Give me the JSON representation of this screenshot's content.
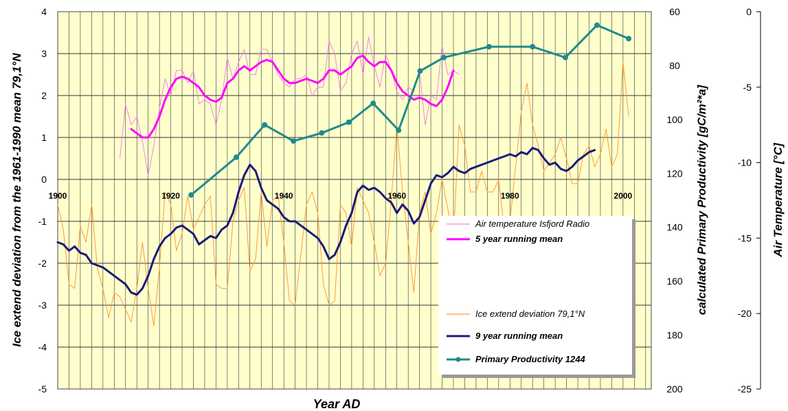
{
  "chart_data": {
    "type": "line",
    "xlabel": "Year AD",
    "ylabel_left": "Ice extend deviation from the 1961-1990 mean 79,1°N",
    "ylabel_mid": "calculated Primary Productivity [gC/m²*a]",
    "ylabel_right": "Air Temperature [°C]",
    "xlim": [
      1900,
      2005
    ],
    "x_ticks": [
      "1900",
      "1920",
      "1940",
      "1960",
      "1980",
      "2000"
    ],
    "ylim_left": [
      -5,
      4
    ],
    "left_ticks": [
      "4",
      "3",
      "2",
      "1",
      "0",
      "-1",
      "-2",
      "-3",
      "-4",
      "-5"
    ],
    "ylim_mid": [
      200,
      60
    ],
    "mid_ticks": [
      "60",
      "80",
      "100",
      "120",
      "140",
      "160",
      "180",
      "200"
    ],
    "ylim_right": [
      -25,
      0
    ],
    "right_ticks": [
      "0",
      "-5",
      "-10",
      "-15",
      "-20",
      "-25"
    ],
    "grid": true,
    "legend_placement": "bottom-right",
    "legend": [
      {
        "label": "Air temperature Isfjord Radio",
        "bold": false
      },
      {
        "label": "5 year running mean",
        "bold": true
      },
      {
        "label": "Ice extend deviation 79,1°N",
        "bold": false
      },
      {
        "label": "9 year running mean",
        "bold": true
      },
      {
        "label": "Primary Productivity 1244",
        "bold": true
      }
    ],
    "series": [
      {
        "name": "Air temperature Isfjord Radio",
        "axis": "left",
        "color": "#ee82ee",
        "x": [
          1911,
          1912,
          1913,
          1914,
          1915,
          1916,
          1917,
          1918,
          1919,
          1920,
          1921,
          1922,
          1923,
          1924,
          1925,
          1926,
          1927,
          1928,
          1929,
          1930,
          1931,
          1932,
          1933,
          1934,
          1935,
          1936,
          1937,
          1938,
          1939,
          1940,
          1941,
          1942,
          1943,
          1944,
          1945,
          1946,
          1947,
          1948,
          1949,
          1950,
          1951,
          1952,
          1953,
          1954,
          1955,
          1956,
          1957,
          1958,
          1959,
          1960,
          1961,
          1962,
          1963,
          1964,
          1965,
          1966,
          1967,
          1968,
          1969,
          1970,
          1971
        ],
        "y": [
          0.5,
          1.8,
          1.3,
          1.5,
          0.9,
          0.1,
          0.8,
          1.7,
          2.4,
          2.0,
          2.6,
          2.6,
          2.3,
          2.6,
          1.8,
          1.9,
          1.8,
          1.3,
          1.9,
          2.9,
          2.4,
          2.8,
          3.1,
          2.5,
          2.5,
          3.1,
          3.1,
          2.8,
          2.5,
          2.3,
          2.2,
          2.4,
          2.4,
          2.5,
          2.0,
          2.2,
          2.2,
          3.3,
          3.0,
          2.1,
          2.3,
          3.0,
          3.3,
          2.5,
          3.4,
          2.7,
          2.2,
          3.0,
          2.6,
          2.1,
          1.9,
          2.2,
          2.1,
          2.6,
          1.3,
          2.0,
          1.9,
          3.2,
          2.5,
          2.6,
          2.5
        ]
      },
      {
        "name": "5 year running mean",
        "axis": "left",
        "color": "#ff00ff",
        "x": [
          1913,
          1914,
          1915,
          1916,
          1917,
          1918,
          1919,
          1920,
          1921,
          1922,
          1923,
          1924,
          1925,
          1926,
          1927,
          1928,
          1929,
          1930,
          1931,
          1932,
          1933,
          1934,
          1935,
          1936,
          1937,
          1938,
          1939,
          1940,
          1941,
          1942,
          1943,
          1944,
          1945,
          1946,
          1947,
          1948,
          1949,
          1950,
          1951,
          1952,
          1953,
          1954,
          1955,
          1956,
          1957,
          1958,
          1959,
          1960,
          1961,
          1962,
          1963,
          1964,
          1965,
          1966,
          1967,
          1968,
          1969,
          1970
        ],
        "y": [
          1.2,
          1.1,
          1.0,
          1.0,
          1.2,
          1.5,
          1.9,
          2.2,
          2.4,
          2.45,
          2.4,
          2.3,
          2.2,
          2.0,
          1.9,
          1.85,
          1.95,
          2.3,
          2.4,
          2.6,
          2.7,
          2.6,
          2.7,
          2.8,
          2.85,
          2.8,
          2.6,
          2.4,
          2.3,
          2.3,
          2.35,
          2.4,
          2.35,
          2.3,
          2.4,
          2.6,
          2.6,
          2.5,
          2.6,
          2.7,
          2.9,
          2.95,
          2.8,
          2.7,
          2.8,
          2.8,
          2.6,
          2.3,
          2.1,
          2.0,
          1.9,
          1.95,
          1.9,
          1.8,
          1.75,
          1.9,
          2.2,
          2.6
        ]
      },
      {
        "name": "Ice extend deviation 79,1°N",
        "axis": "left",
        "color": "#ff9933",
        "x": [
          1900,
          1901,
          1902,
          1903,
          1904,
          1905,
          1906,
          1907,
          1908,
          1909,
          1910,
          1911,
          1912,
          1913,
          1914,
          1915,
          1916,
          1917,
          1918,
          1919,
          1920,
          1921,
          1922,
          1923,
          1924,
          1925,
          1926,
          1927,
          1928,
          1929,
          1930,
          1931,
          1932,
          1933,
          1934,
          1935,
          1936,
          1937,
          1938,
          1939,
          1940,
          1941,
          1942,
          1943,
          1944,
          1945,
          1946,
          1947,
          1948,
          1949,
          1950,
          1951,
          1952,
          1953,
          1954,
          1955,
          1956,
          1957,
          1958,
          1959,
          1960,
          1961,
          1962,
          1963,
          1964,
          1965,
          1966,
          1967,
          1968,
          1969,
          1970,
          1971,
          1972,
          1973,
          1974,
          1975,
          1976,
          1977,
          1978,
          1979,
          1980,
          1981,
          1982,
          1983,
          1984,
          1985,
          1986,
          1987,
          1988,
          1989,
          1990,
          1991,
          1992,
          1993,
          1994,
          1995,
          1996,
          1997,
          1998,
          1999,
          2000,
          2001
        ],
        "y": [
          -0.6,
          -1.2,
          -2.5,
          -2.6,
          -1.1,
          -1.5,
          -0.6,
          -2.1,
          -2.6,
          -3.3,
          -2.7,
          -2.8,
          -3.1,
          -3.4,
          -2.6,
          -1.5,
          -2.6,
          -3.5,
          -2.1,
          -0.3,
          -0.6,
          -1.7,
          -1.3,
          -0.4,
          -1.2,
          -0.9,
          -0.6,
          -0.4,
          -2.5,
          -2.6,
          -2.6,
          -1.0,
          -0.5,
          -0.2,
          -2.2,
          -1.9,
          -0.3,
          -1.6,
          -0.5,
          -0.4,
          -1.5,
          -2.9,
          -3.0,
          -1.8,
          -0.6,
          -0.3,
          -0.8,
          -2.5,
          -3.0,
          -2.9,
          -0.6,
          -0.8,
          -1.6,
          -0.2,
          -0.5,
          -0.8,
          -1.5,
          -2.3,
          -2.0,
          -0.5,
          1.3,
          -0.3,
          -1.5,
          -2.7,
          -0.8,
          -0.3,
          -1.3,
          -0.8,
          0.0,
          -0.7,
          -1.4,
          1.3,
          0.8,
          -0.3,
          -0.3,
          0.2,
          -0.3,
          -0.3,
          0.0,
          -1.2,
          -1.0,
          0.3,
          1.6,
          2.3,
          1.3,
          0.8,
          0.2,
          0.4,
          0.6,
          1.0,
          0.5,
          -0.1,
          -0.1,
          0.6,
          0.8,
          0.3,
          0.6,
          1.2,
          0.3,
          0.6,
          2.8,
          1.5
        ]
      },
      {
        "name": "9 year running mean",
        "axis": "left",
        "color": "#1a1a7a",
        "x": [
          1900,
          1901,
          1902,
          1903,
          1904,
          1905,
          1906,
          1907,
          1908,
          1909,
          1910,
          1911,
          1912,
          1913,
          1914,
          1915,
          1916,
          1917,
          1918,
          1919,
          1920,
          1921,
          1922,
          1923,
          1924,
          1925,
          1926,
          1927,
          1928,
          1929,
          1930,
          1931,
          1932,
          1933,
          1934,
          1935,
          1936,
          1937,
          1938,
          1939,
          1940,
          1941,
          1942,
          1943,
          1944,
          1945,
          1946,
          1947,
          1948,
          1949,
          1950,
          1951,
          1952,
          1953,
          1954,
          1955,
          1956,
          1957,
          1958,
          1959,
          1960,
          1961,
          1962,
          1963,
          1964,
          1965,
          1966,
          1967,
          1968,
          1969,
          1970,
          1971,
          1972,
          1973,
          1974,
          1975,
          1976,
          1977,
          1978,
          1979,
          1980,
          1981,
          1982,
          1983,
          1984,
          1985,
          1986,
          1987,
          1988,
          1989,
          1990,
          1991,
          1992,
          1993,
          1994,
          1995
        ],
        "y": [
          -1.5,
          -1.55,
          -1.7,
          -1.6,
          -1.75,
          -1.8,
          -2.0,
          -2.05,
          -2.1,
          -2.2,
          -2.3,
          -2.4,
          -2.5,
          -2.7,
          -2.75,
          -2.6,
          -2.3,
          -1.9,
          -1.6,
          -1.4,
          -1.3,
          -1.15,
          -1.1,
          -1.2,
          -1.3,
          -1.55,
          -1.45,
          -1.35,
          -1.4,
          -1.2,
          -1.1,
          -0.8,
          -0.3,
          0.1,
          0.35,
          0.2,
          -0.2,
          -0.5,
          -0.6,
          -0.7,
          -0.9,
          -1.0,
          -1.0,
          -1.1,
          -1.2,
          -1.3,
          -1.4,
          -1.6,
          -1.9,
          -1.8,
          -1.5,
          -1.1,
          -0.8,
          -0.3,
          -0.15,
          -0.25,
          -0.2,
          -0.3,
          -0.45,
          -0.55,
          -0.8,
          -0.6,
          -0.75,
          -1.05,
          -0.9,
          -0.5,
          -0.1,
          0.1,
          0.05,
          0.15,
          0.3,
          0.2,
          0.15,
          0.25,
          0.3,
          0.35,
          0.4,
          0.45,
          0.5,
          0.55,
          0.6,
          0.55,
          0.65,
          0.6,
          0.75,
          0.7,
          0.5,
          0.35,
          0.4,
          0.25,
          0.2,
          0.3,
          0.45,
          0.55,
          0.65,
          0.7
        ]
      },
      {
        "name": "Primary Productivity 1244",
        "axis": "mid",
        "color": "#1f8a8a",
        "x": [
          1923.6,
          1931.6,
          1936.6,
          1941.7,
          1946.7,
          1951.5,
          1955.8,
          1960.3,
          1964.1,
          1968.3,
          1976.3,
          1984.0,
          1989.8,
          1995.4,
          2001.0
        ],
        "y": [
          128,
          114,
          102,
          108,
          105,
          101,
          94,
          104,
          82,
          77,
          73,
          73,
          77,
          65,
          70
        ]
      }
    ]
  }
}
